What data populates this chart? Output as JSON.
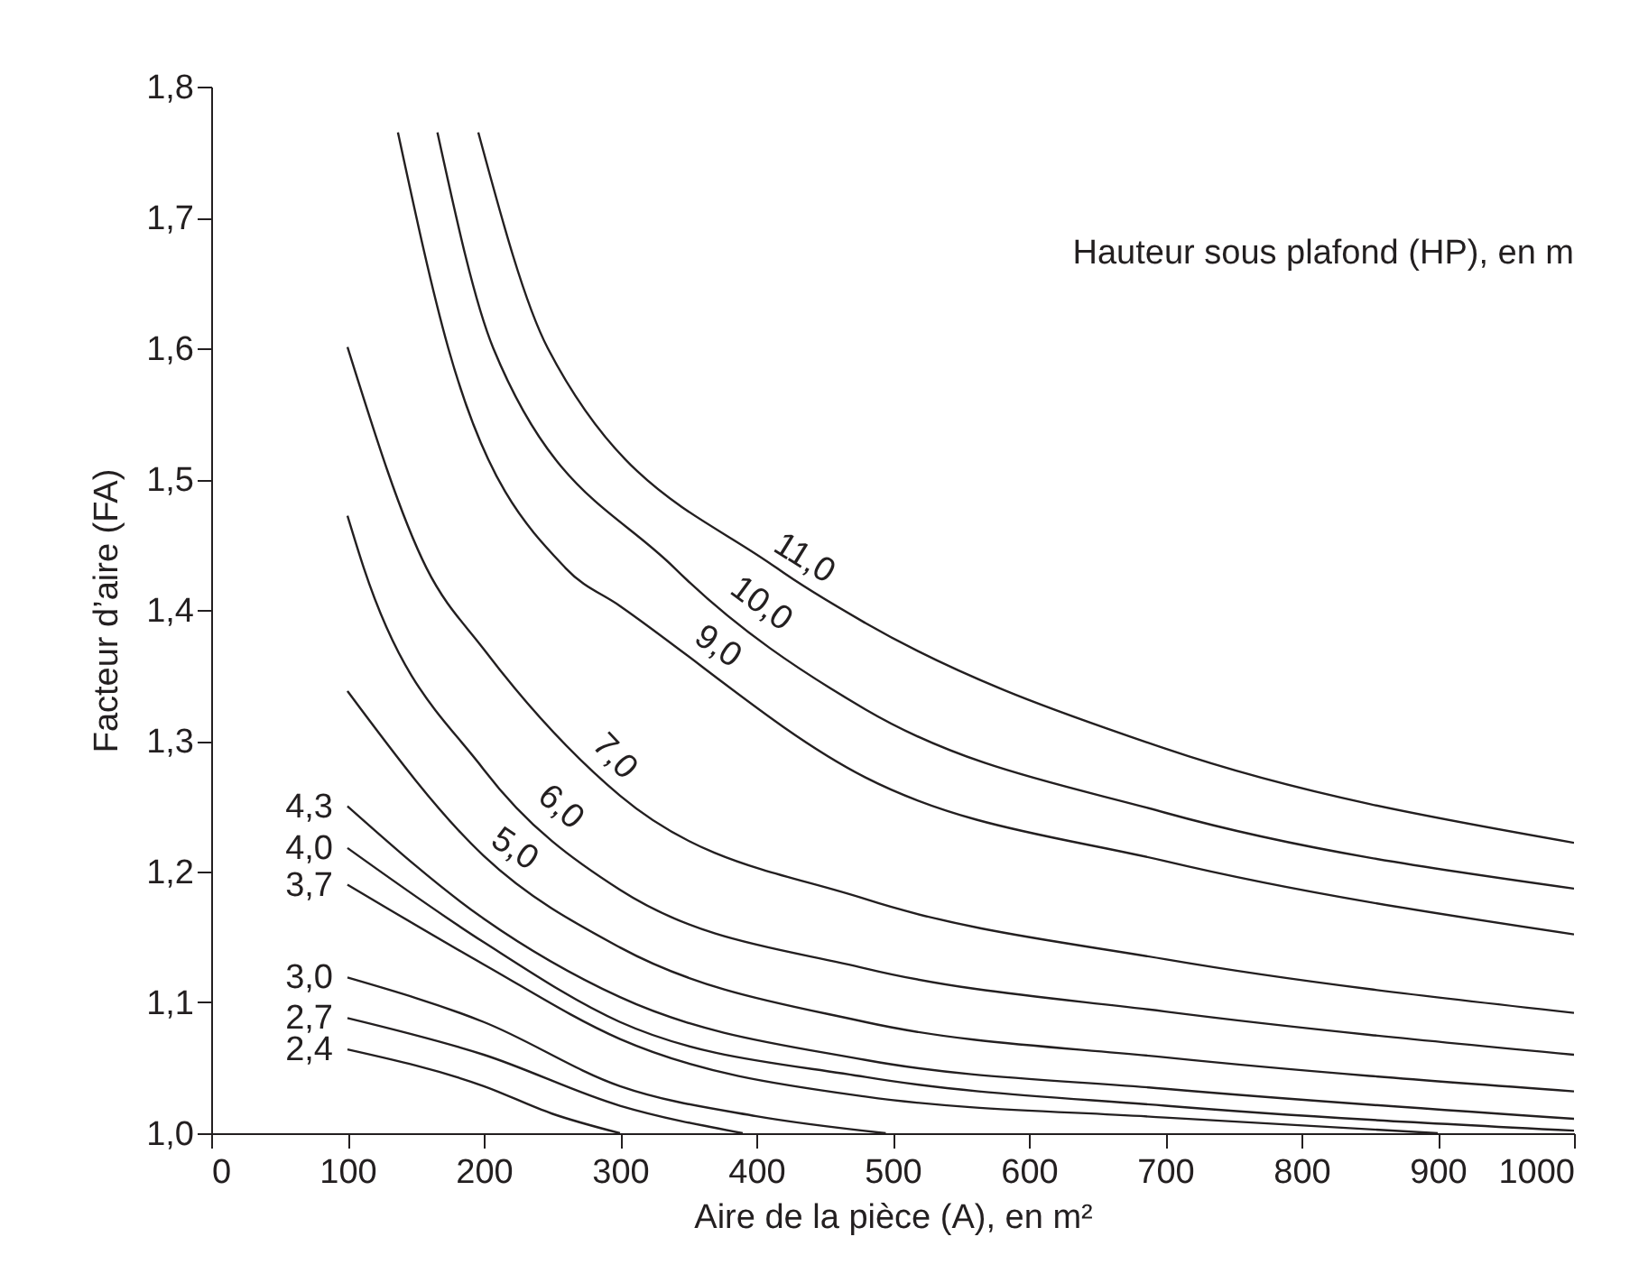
{
  "chart_data": {
    "type": "line",
    "xlabel": "Aire de la pièce (A), en m²",
    "ylabel": "Facteur d’aire (FA)",
    "annotations": [
      "Hauteur sous plafond (HP), en m"
    ],
    "xlim": [
      0,
      1000
    ],
    "ylim": [
      1.0,
      1.8
    ],
    "xticks": [
      0,
      100,
      200,
      300,
      400,
      500,
      600,
      700,
      800,
      900,
      1000
    ],
    "yticks": [
      {
        "value": 1.0,
        "label": "1,0"
      },
      {
        "value": 1.1,
        "label": "1,1"
      },
      {
        "value": 1.2,
        "label": "1,2"
      },
      {
        "value": 1.3,
        "label": "1,3"
      },
      {
        "value": 1.4,
        "label": "1,4"
      },
      {
        "value": 1.5,
        "label": "1,5"
      },
      {
        "value": 1.6,
        "label": "1,6"
      },
      {
        "value": 1.7,
        "label": "1,7"
      },
      {
        "value": 1.8,
        "label": "1,8"
      }
    ],
    "grid": false,
    "line_style": "solid",
    "marker": "none",
    "series": [
      {
        "name": "11,0",
        "color": "#231f20",
        "x": [
          196,
          247,
          415,
          480,
          700,
          1000
        ],
        "values": [
          1.765,
          1.6,
          1.432,
          1.39,
          1.294,
          1.222
        ]
      },
      {
        "name": "10,0",
        "color": "#231f20",
        "x": [
          166,
          207,
          340,
          480,
          700,
          1000
        ],
        "values": [
          1.765,
          1.6,
          1.432,
          1.324,
          1.245,
          1.187
        ]
      },
      {
        "name": "9,0",
        "color": "#231f20",
        "x": [
          137,
          174,
          260,
          300,
          480,
          700,
          1000
        ],
        "values": [
          1.765,
          1.6,
          1.432,
          1.403,
          1.272,
          1.208,
          1.152
        ]
      },
      {
        "name": "7,0",
        "color": "#231f20",
        "x": [
          100,
          158,
          200,
          300,
          480,
          700,
          1000
        ],
        "values": [
          1.601,
          1.432,
          1.37,
          1.258,
          1.179,
          1.133,
          1.092
        ]
      },
      {
        "name": "6,0",
        "color": "#231f20",
        "x": [
          100,
          112,
          200,
          300,
          480,
          700,
          1000
        ],
        "values": [
          1.472,
          1.432,
          1.278,
          1.186,
          1.126,
          1.093,
          1.06
        ]
      },
      {
        "name": "5,0",
        "color": "#231f20",
        "x": [
          100,
          200,
          300,
          480,
          700,
          1000
        ],
        "values": [
          1.338,
          1.212,
          1.142,
          1.085,
          1.058,
          1.032
        ]
      },
      {
        "name": "4,3",
        "color": "#231f20",
        "x": [
          100,
          200,
          300,
          480,
          700,
          1000
        ],
        "values": [
          1.25,
          1.164,
          1.104,
          1.056,
          1.034,
          1.011
        ]
      },
      {
        "name": "4,0",
        "color": "#231f20",
        "x": [
          100,
          200,
          300,
          480,
          700,
          1000
        ],
        "values": [
          1.218,
          1.146,
          1.085,
          1.043,
          1.021,
          1.002
        ]
      },
      {
        "name": "3,7",
        "color": "#231f20",
        "x": [
          100,
          200,
          300,
          480,
          700,
          900
        ],
        "values": [
          1.19,
          1.129,
          1.072,
          1.028,
          1.012,
          1.0
        ]
      },
      {
        "name": "3,0",
        "color": "#231f20",
        "x": [
          100,
          200,
          300,
          400,
          495
        ],
        "values": [
          1.119,
          1.085,
          1.036,
          1.013,
          1.0
        ]
      },
      {
        "name": "2,7",
        "color": "#231f20",
        "x": [
          100,
          200,
          300,
          390
        ],
        "values": [
          1.088,
          1.06,
          1.021,
          1.0
        ]
      },
      {
        "name": "2,4",
        "color": "#231f20",
        "x": [
          100,
          200,
          250,
          300
        ],
        "values": [
          1.064,
          1.036,
          1.015,
          1.0
        ]
      }
    ]
  }
}
